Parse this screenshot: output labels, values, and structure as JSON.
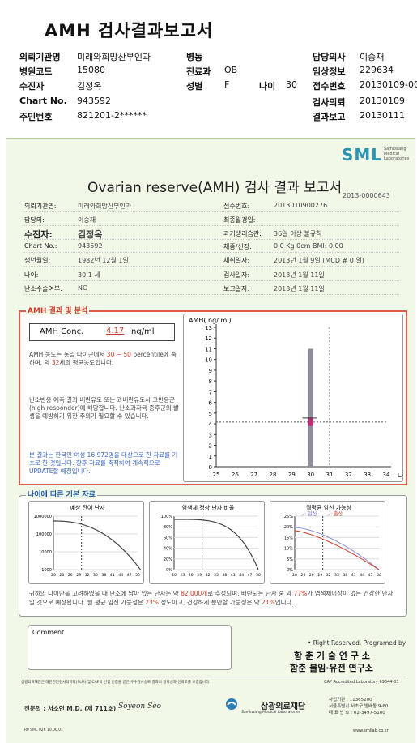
{
  "title": "AMH 검사결과보고서",
  "header": {
    "left": [
      {
        "label": "의뢰기관명",
        "value": "미래와희망산부인과"
      },
      {
        "label": "병원코드",
        "value": "15080"
      },
      {
        "label": "수진자",
        "value": "김정옥"
      },
      {
        "label": "Chart No.",
        "value": "943592"
      },
      {
        "label": "주민번호",
        "value": "821201-2******"
      }
    ],
    "mid": [
      {
        "label": "병동",
        "value": ""
      },
      {
        "label": "진료과",
        "value": "OB"
      },
      {
        "label": "성별",
        "value": "F"
      }
    ],
    "age_label": "나이",
    "age_value": "30",
    "right": [
      {
        "label": "담당의사",
        "value": "이승재"
      },
      {
        "label": "임상정보",
        "value": "229634"
      },
      {
        "label": "접수번호",
        "value": "20130109-00"
      },
      {
        "label": "검사의뢰",
        "value": "20130109"
      },
      {
        "label": "결과보고",
        "value": "20130111"
      }
    ]
  },
  "report": {
    "brand": "SML",
    "brand_sub": [
      "Samkwang",
      "Medical",
      "Laboratories"
    ],
    "title": "Ovarian reserve(AMH) 검사 결과 보고서",
    "number": "2013-0000643",
    "left_fields": [
      {
        "label": "의뢰기관명:",
        "value": "미래와희망산부인과"
      },
      {
        "label": "담당의:",
        "value": "이승재"
      },
      {
        "label": "수진자:",
        "value": "김정옥"
      },
      {
        "label": "Chart No.:",
        "value": "943592"
      },
      {
        "label": "생년월일:",
        "value": "1982년 12월 1일"
      },
      {
        "label": "나이:",
        "value": "30.1 세"
      },
      {
        "label": "난소수술여부:",
        "value": "NO"
      }
    ],
    "right_fields": [
      {
        "label": "접수번호:",
        "value": "2013010900276"
      },
      {
        "label": "최종월경일:",
        "value": ""
      },
      {
        "label": "과거생리습관:",
        "value": "36일 이상 불규칙"
      },
      {
        "label": "체중/신장:",
        "value": "0.0 Kg       0cm   BMI:  0.00"
      },
      {
        "label": "채취일자:",
        "value": "2013년 1월 9일   (MCD # 0 일)"
      },
      {
        "label": "검사일자:",
        "value": "2013년 1월 11일"
      },
      {
        "label": "보고일자:",
        "value": "2013년 1월 11일"
      }
    ],
    "amh_section_title": "AMH 결과 및 분석",
    "amh_conc_label": "AMH Conc.",
    "amh_conc_value": "4.17",
    "amh_conc_unit": "ng/ml",
    "amh_text1_a": "AMH 농도는 동일 나이군에서",
    "amh_text1_range": "30 ~ 50",
    "amh_text1_b": "percentile에 속하며, 약",
    "amh_text1_c": "32",
    "amh_text1_d": "세의 평균농도입니다.",
    "amh_text2": "난소반응 예측 결과 배란유도 또는 과배란유도시 고반응군 (high responder)에 해당합니다. 난소과자극 증후군의 발생을 예방하기 위한 주의가 필요할 수 있습니다.",
    "amh_text3": "본 결과는 한국인 여성 16,972명을 대상으로 한 자료를 기초로 한 것입니다. 향후 자료를 축적하여 계속적으로 UPDATE할 예정입니다.",
    "basic_section_title": "나이에 따른 기본 자료",
    "chart1_title": "예상 잔여 난자",
    "chart2_title": "염색체 정상 난자 비율",
    "chart3_title": "월평균 임신 가능성",
    "chart3_legend": [
      "임신",
      "출산"
    ],
    "summary_a": "귀하의 나이만을 고려하였을 때 난소에 남아 있는 난자는 약",
    "summary_eggs": "82,000개",
    "summary_b": "로 추정되며, 배란되는 난자 중 약",
    "summary_pct1": "77%",
    "summary_c": "가 염색체이상이 없는 건강한 난자일 것으로 예상됩니다. 월 평균 임신 가능성은",
    "summary_pct2": "23%",
    "summary_d": "정도이고, 건강하게 분만할 가능성은 약",
    "summary_pct3": "21%",
    "summary_e": "입니다.",
    "comment_label": "Comment",
    "rights": "• Right Reserved. Programed by",
    "lab1": "함 춘 기 술 연 구 소",
    "lab2": "함춘 불임·유전 연구소",
    "cap_text": "CAP Accredited Laboratory  69644-01",
    "certs": "삼광의료재단은 대한진단검사의학회(SLM) 및 CAP의 신임 인증을 받은 우수검사실로 결과의 정확성과 신뢰도를 보증합니다.",
    "doctor": "전문의 : 서소연 M.D. (제 711호)",
    "signature": "Soyeon Seo",
    "foundation": "삼광의료재단",
    "foundation_en": "Samkwang Medical Laboratories",
    "contact": [
      "사업기관 : 11365200",
      "서울특별시 서초구 방배동 9-60",
      "대 표 번 호 : 02-3497-5100"
    ],
    "form_code": "RP SML 026 10.06.01",
    "website": "www.smllab.co.kr"
  },
  "chart_data": [
    {
      "type": "scatter",
      "title": "AMH( ng/ ml)",
      "xlabel": "나이",
      "ylim": [
        0,
        13
      ],
      "xlim": [
        25,
        34
      ],
      "x_ticks": [
        25,
        26,
        27,
        28,
        29,
        30,
        31,
        32,
        33,
        34
      ],
      "y_ticks": [
        0,
        1,
        2,
        3,
        4,
        5,
        6,
        7,
        8,
        9,
        10,
        11,
        12,
        13
      ],
      "range_bar": {
        "x": 30,
        "low": 0,
        "high": 11
      },
      "patient": {
        "x": 30,
        "y": 4.17
      },
      "reference_line": {
        "x": 31
      }
    },
    {
      "type": "line",
      "title": "예상 잔여 난자",
      "y_ticks": [
        "1000000",
        "100000",
        "10000",
        "1000"
      ],
      "x_ticks": [
        20,
        23,
        26,
        29,
        32,
        35,
        38,
        41,
        44,
        47,
        50
      ],
      "log_y": true,
      "reference_line": {
        "x": 30
      }
    },
    {
      "type": "line",
      "title": "염색체 정상 난자 비율",
      "y_ticks": [
        "100%",
        "80%",
        "60%",
        "40%",
        "20%",
        "0%"
      ],
      "x_ticks": [
        20,
        23,
        26,
        29,
        32,
        35,
        38,
        41,
        44,
        47,
        50
      ],
      "reference_line": {
        "x": 30
      }
    },
    {
      "type": "line",
      "title": "월평균 임신 가능성",
      "y_ticks": [
        "25%",
        "20%",
        "15%",
        "10%",
        "5%",
        "0%"
      ],
      "x_ticks": [
        20,
        23,
        26,
        29,
        32,
        35,
        38,
        41,
        44,
        47,
        50
      ],
      "series": [
        {
          "name": "임신"
        },
        {
          "name": "출산"
        }
      ],
      "reference_line": {
        "x": 30
      }
    }
  ]
}
